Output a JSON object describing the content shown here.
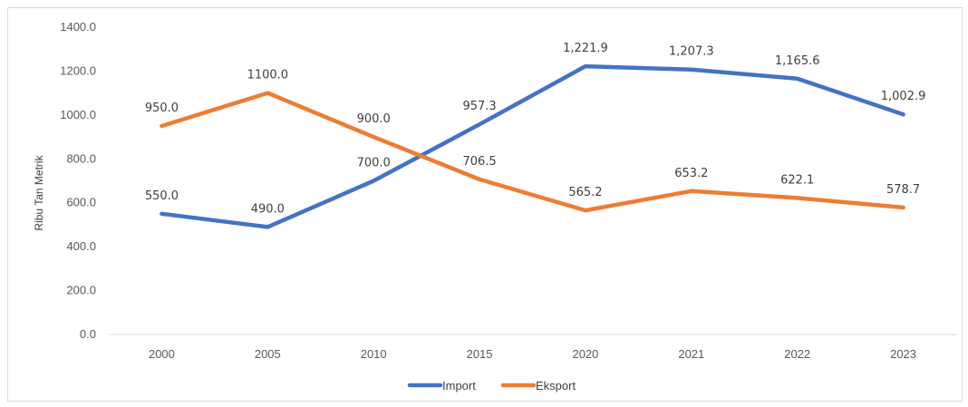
{
  "chart_data": {
    "type": "line",
    "title": "",
    "xlabel": "",
    "ylabel": "Ribu Tan Metrik",
    "categories": [
      "2000",
      "2005",
      "2010",
      "2015",
      "2020",
      "2021",
      "2022",
      "2023"
    ],
    "ylim": [
      0,
      1400
    ],
    "y_ticks": [
      "0.0",
      "200.0",
      "400.0",
      "600.0",
      "800.0",
      "1000.0",
      "1200.0",
      "1400.0"
    ],
    "grid": false,
    "legend_position": "bottom",
    "series": [
      {
        "name": "Import",
        "color": "#4472C4",
        "values": [
          550.0,
          490.0,
          700.0,
          957.3,
          1221.9,
          1207.3,
          1165.6,
          1002.9
        ],
        "labels": [
          "550.0",
          "490.0",
          "700.0",
          "957.3",
          "1,221.9",
          "1,207.3",
          "1,165.6",
          "1,002.9"
        ]
      },
      {
        "name": "Eksport",
        "color": "#ED7D31",
        "values": [
          950.0,
          1100.0,
          900.0,
          706.5,
          565.2,
          653.2,
          622.1,
          578.7
        ],
        "labels": [
          "950.0",
          "1100.0",
          "900.0",
          "706.5",
          "565.2",
          "653.2",
          "622.1",
          "578.7"
        ]
      }
    ]
  }
}
